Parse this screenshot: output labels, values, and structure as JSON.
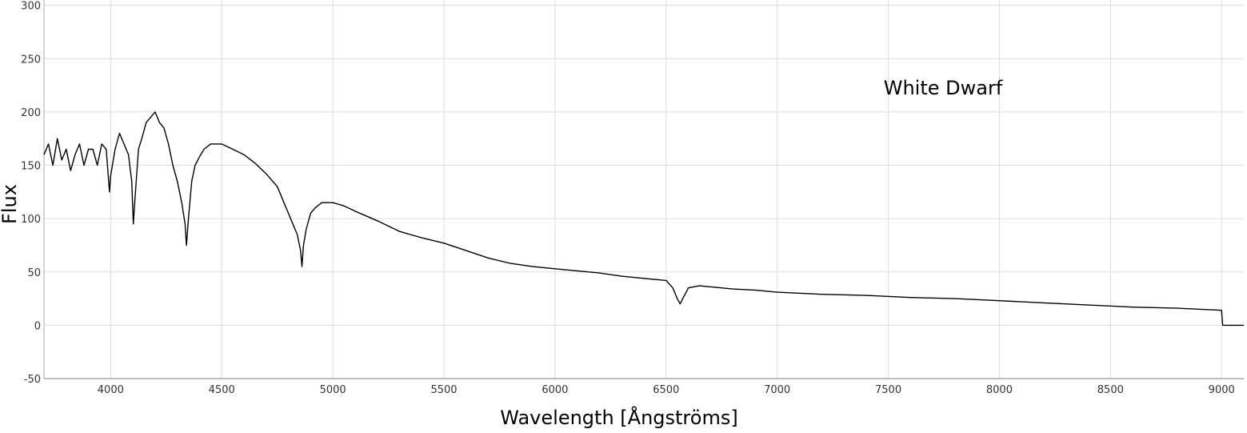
{
  "chart_data": {
    "type": "line",
    "title": "",
    "xlabel": "Wavelength [Ångströms]",
    "ylabel": "Flux",
    "annotation": "White Dwarf",
    "xlim": [
      3700,
      9100
    ],
    "ylim": [
      -50,
      305
    ],
    "grid": true,
    "x_ticks": [
      4000,
      4500,
      5000,
      5500,
      6000,
      6500,
      7000,
      7500,
      8000,
      8500,
      9000
    ],
    "y_ticks": [
      -50,
      0,
      50,
      100,
      150,
      200,
      250,
      300
    ],
    "colors": {
      "line": "#000000",
      "grid": "#dcdcdc",
      "axis": "#aaaaaa"
    },
    "series": [
      {
        "x": [
          3700,
          3720,
          3740,
          3760,
          3780,
          3800,
          3820,
          3840,
          3860,
          3880,
          3900,
          3920,
          3940,
          3960,
          3980,
          3995,
          4000,
          4020,
          4040,
          4060,
          4080,
          4095,
          4102,
          4110,
          4125,
          4140,
          4160,
          4180,
          4200,
          4220,
          4240,
          4260,
          4280,
          4300,
          4320,
          4335,
          4341,
          4350,
          4365,
          4380,
          4400,
          4420,
          4450,
          4480,
          4500,
          4550,
          4600,
          4650,
          4700,
          4750,
          4780,
          4800,
          4820,
          4840,
          4855,
          4861,
          4868,
          4880,
          4900,
          4920,
          4950,
          5000,
          5050,
          5100,
          5200,
          5300,
          5400,
          5500,
          5600,
          5700,
          5800,
          5900,
          6000,
          6100,
          6200,
          6300,
          6400,
          6500,
          6530,
          6550,
          6563,
          6575,
          6600,
          6650,
          6700,
          6800,
          6900,
          7000,
          7200,
          7400,
          7600,
          7800,
          8000,
          8200,
          8400,
          8600,
          8800,
          9000,
          9005,
          9100
        ],
        "y": [
          160,
          170,
          150,
          175,
          155,
          165,
          145,
          160,
          170,
          150,
          165,
          165,
          150,
          170,
          165,
          125,
          140,
          165,
          180,
          170,
          160,
          135,
          95,
          120,
          165,
          175,
          190,
          195,
          200,
          190,
          185,
          170,
          150,
          135,
          115,
          95,
          75,
          100,
          135,
          150,
          158,
          165,
          170,
          170,
          170,
          165,
          160,
          152,
          142,
          130,
          115,
          105,
          95,
          85,
          70,
          55,
          75,
          90,
          105,
          110,
          115,
          115,
          112,
          107,
          98,
          88,
          82,
          77,
          70,
          63,
          58,
          55,
          53,
          51,
          49,
          46,
          44,
          42,
          35,
          25,
          20,
          25,
          35,
          37,
          36,
          34,
          33,
          31,
          29,
          28,
          26,
          25,
          23,
          21,
          19,
          17,
          16,
          14,
          0,
          0
        ]
      }
    ]
  }
}
